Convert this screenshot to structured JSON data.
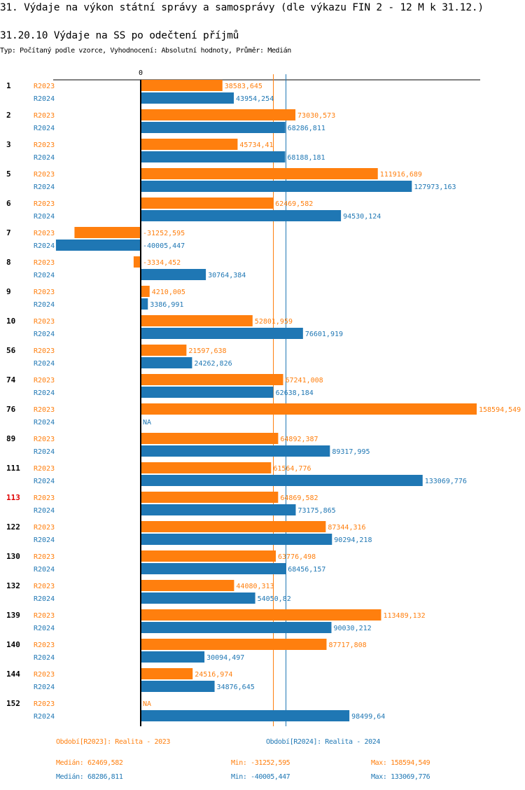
{
  "page": {
    "title": "31. Výdaje na výkon státní správy a samosprávy (dle výkazu FIN 2 - 12 M k 31.12.)",
    "subtitle": "31.20.10 Výdaje na SS po odečtení příjmů",
    "meta": "Typ: Počítaný podle vzorce, Vyhodnocení: Absolutní hodnoty, Průměr: Medián"
  },
  "colors": {
    "R2023": "#ff7f0e",
    "R2024": "#1f77b4",
    "axis": "#000000",
    "highlight_group": "#e00000"
  },
  "chart_data": {
    "type": "bar",
    "orientation": "horizontal",
    "title": "31.20.10 Výdaje na SS po odečtení příjmů",
    "zero_tick_label": "0",
    "xlim": [
      -66000,
      161000
    ],
    "grid": false,
    "highlighted_category": "113",
    "categories": [
      "1",
      "2",
      "3",
      "5",
      "6",
      "7",
      "8",
      "9",
      "10",
      "56",
      "74",
      "76",
      "89",
      "111",
      "113",
      "122",
      "130",
      "132",
      "139",
      "140",
      "144",
      "152"
    ],
    "series": [
      {
        "name": "R2023",
        "label": "Období[R2023]: Realita - 2023",
        "values": [
          38583.645,
          73030.573,
          45734.41,
          111916.689,
          62469.582,
          -31252.595,
          -3334.452,
          4210.005,
          52801.959,
          21597.638,
          67241.008,
          158594.549,
          64892.387,
          61564.776,
          64869.582,
          87344.316,
          63776.498,
          44080.313,
          113489.132,
          87717.808,
          24516.974,
          null
        ],
        "value_labels": [
          "38583,645",
          "73030,573",
          "45734,41",
          "111916,689",
          "62469,582",
          "-31252,595",
          "-3334,452",
          "4210,005",
          "52801,959",
          "21597,638",
          "67241,008",
          "158594,549",
          "64892,387",
          "61564,776",
          "64869,582",
          "87344,316",
          "63776,498",
          "44080,313",
          "113489,132",
          "87717,808",
          "24516,974",
          "NA"
        ],
        "median": 62469.582,
        "median_label": "Medián: 62469,582",
        "min_label": "Min: -31252,595",
        "max_label": "Max: 158594,549"
      },
      {
        "name": "R2024",
        "label": "Období[R2024]: Realita - 2024",
        "values": [
          43954.254,
          68286.811,
          68188.181,
          127973.163,
          94530.124,
          -40005.447,
          30764.384,
          3386.991,
          76601.919,
          24262.826,
          62638.184,
          null,
          89317.995,
          133069.776,
          73175.865,
          90294.218,
          68456.157,
          54050.82,
          90030.212,
          30094.497,
          34876.645,
          98499.64
        ],
        "value_labels": [
          "43954,254",
          "68286,811",
          "68188,181",
          "127973,163",
          "94530,124",
          "-40005,447",
          "30764,384",
          "3386,991",
          "76601,919",
          "24262,826",
          "62638,184",
          "NA",
          "89317,995",
          "133069,776",
          "73175,865",
          "90294,218",
          "68456,157",
          "54050,82",
          "90030,212",
          "30094,497",
          "34876,645",
          "98499,64"
        ],
        "median": 68286.811,
        "median_label": "Medián: 68286,811",
        "min_label": "Min: -40005,447",
        "max_label": "Max: 133069,776"
      }
    ]
  }
}
